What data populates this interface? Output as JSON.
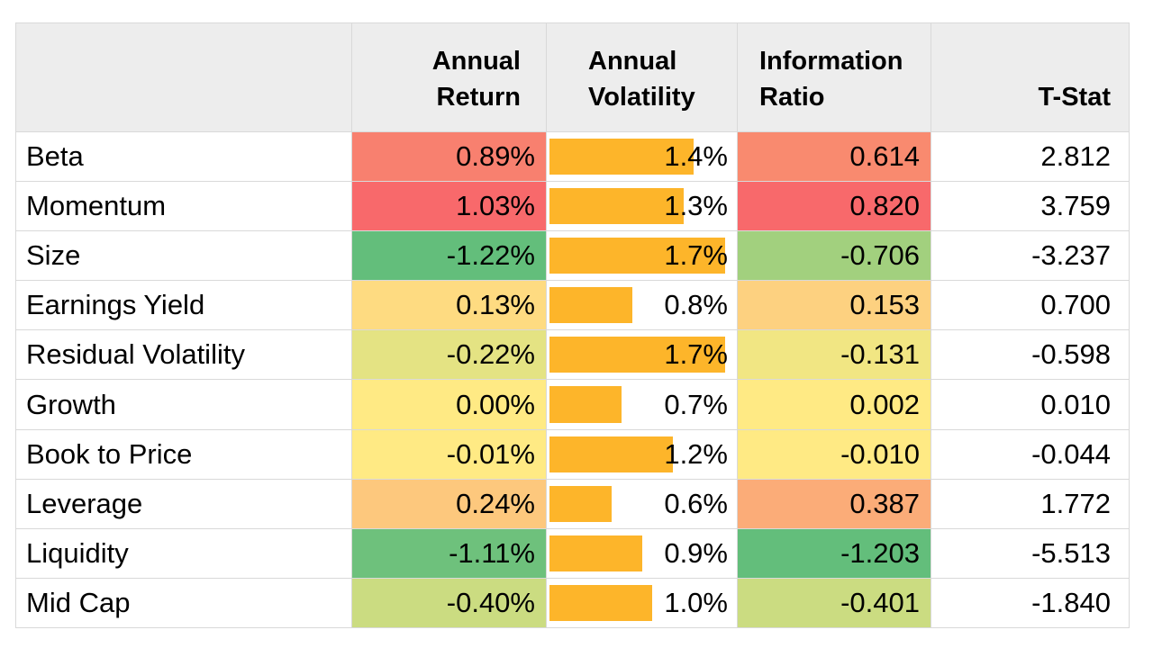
{
  "chart_data": {
    "type": "table",
    "columns": [
      "",
      "Annual Return",
      "Annual Volatility",
      "Information Ratio",
      "T-Stat"
    ],
    "header_lines": {
      "return": [
        "Annual",
        "Return"
      ],
      "volatility": [
        "Annual",
        "Volatility"
      ],
      "ir": [
        "Information",
        "Ratio"
      ],
      "tstat": [
        "T-Stat"
      ]
    },
    "volatility_bar_max": 1.8,
    "rows": [
      {
        "factor": "Beta",
        "annual_return": "0.89%",
        "annual_volatility": "1.4%",
        "volatility_value": 1.4,
        "information_ratio": "0.614",
        "t_stat": "2.812",
        "return_color": "#f8806f",
        "ir_color": "#f98a6f"
      },
      {
        "factor": "Momentum",
        "annual_return": "1.03%",
        "annual_volatility": "1.3%",
        "volatility_value": 1.3,
        "information_ratio": "0.820",
        "t_stat": "3.759",
        "return_color": "#f8696b",
        "ir_color": "#f8696b"
      },
      {
        "factor": "Size",
        "annual_return": "-1.22%",
        "annual_volatility": "1.7%",
        "volatility_value": 1.7,
        "information_ratio": "-0.706",
        "t_stat": "-3.237",
        "return_color": "#63be7b",
        "ir_color": "#a2d07e"
      },
      {
        "factor": "Earnings Yield",
        "annual_return": "0.13%",
        "annual_volatility": "0.8%",
        "volatility_value": 0.8,
        "information_ratio": "0.153",
        "t_stat": "0.700",
        "return_color": "#fedb81",
        "ir_color": "#fdd180"
      },
      {
        "factor": "Residual Volatility",
        "annual_return": "-0.22%",
        "annual_volatility": "1.7%",
        "volatility_value": 1.7,
        "information_ratio": "-0.131",
        "t_stat": "-0.598",
        "return_color": "#e4e383",
        "ir_color": "#f1e683"
      },
      {
        "factor": "Growth",
        "annual_return": "0.00%",
        "annual_volatility": "0.7%",
        "volatility_value": 0.7,
        "information_ratio": "0.002",
        "t_stat": "0.010",
        "return_color": "#ffea84",
        "ir_color": "#ffea84"
      },
      {
        "factor": "Book to Price",
        "annual_return": "-0.01%",
        "annual_volatility": "1.2%",
        "volatility_value": 1.2,
        "information_ratio": "-0.010",
        "t_stat": "-0.044",
        "return_color": "#ffea84",
        "ir_color": "#ffea84"
      },
      {
        "factor": "Leverage",
        "annual_return": "0.24%",
        "annual_volatility": "0.6%",
        "volatility_value": 0.6,
        "information_ratio": "0.387",
        "t_stat": "1.772",
        "return_color": "#fdc87d",
        "ir_color": "#fbac78"
      },
      {
        "factor": "Liquidity",
        "annual_return": "-1.11%",
        "annual_volatility": "0.9%",
        "volatility_value": 0.9,
        "information_ratio": "-1.203",
        "t_stat": "-5.513",
        "return_color": "#6ec17c",
        "ir_color": "#63be7b"
      },
      {
        "factor": "Mid Cap",
        "annual_return": "-0.40%",
        "annual_volatility": "1.0%",
        "volatility_value": 1.0,
        "information_ratio": "-0.401",
        "t_stat": "-1.840",
        "return_color": "#cbdc81",
        "ir_color": "#cbdc81"
      }
    ]
  }
}
